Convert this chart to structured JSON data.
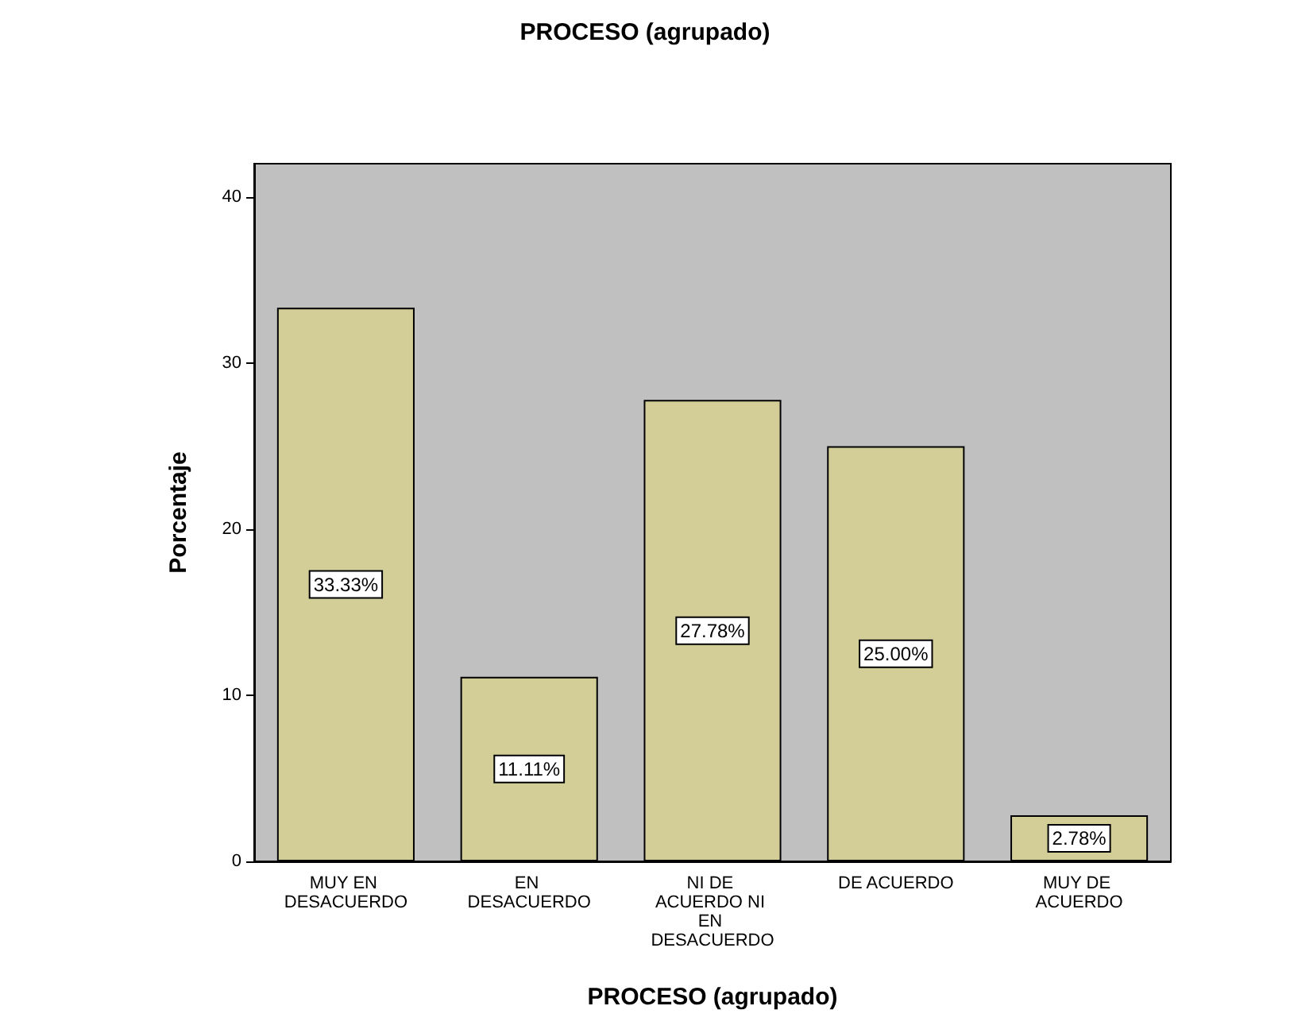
{
  "chart_data": {
    "type": "bar",
    "title": "PROCESO (agrupado)",
    "xlabel": "PROCESO (agrupado)",
    "ylabel": "Porcentaje",
    "categories": [
      "MUY EN DESACUERDO",
      "EN DESACUERDO",
      "NI DE ACUERDO NI EN DESACUERDO",
      "DE ACUERDO",
      "MUY DE ACUERDO"
    ],
    "values": [
      33.33,
      11.11,
      27.78,
      25.0,
      2.78
    ],
    "value_labels": [
      "33.33%",
      "11.11%",
      "27.78%",
      "25.00%",
      "2.78%"
    ],
    "color": "#d3ce97",
    "ylim": [
      0,
      42
    ],
    "yticks": [
      0,
      10,
      20,
      30,
      40
    ],
    "grid": false
  }
}
